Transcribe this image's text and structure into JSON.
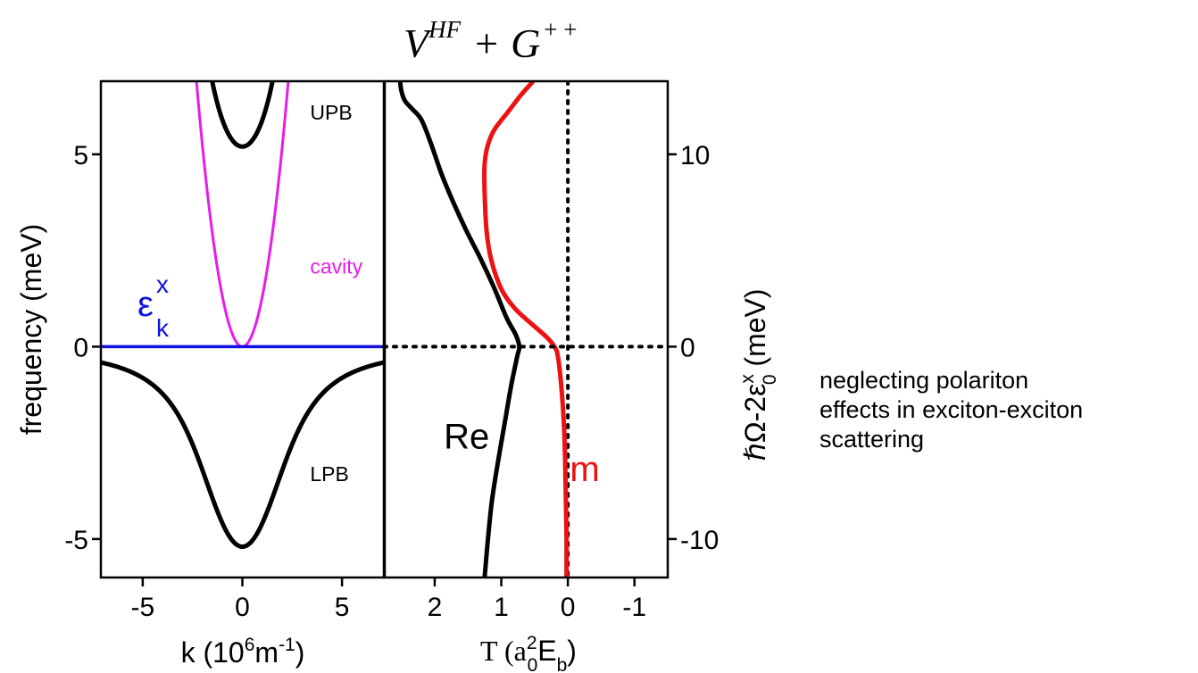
{
  "title": {
    "main": "V",
    "sup1": "HF",
    "plus1": "+",
    "main2": "G",
    "sup2": "+ +"
  },
  "colors": {
    "lpb_upb": "#000000",
    "cavity": "#e81ce8",
    "exciton": "#1010e0",
    "re": "#000000",
    "im": "#ee1111",
    "dotted": "#000000"
  },
  "note_lines": [
    "neglecting polariton",
    "effects in exciton-exciton",
    "scattering"
  ],
  "chart_data": [
    {
      "type": "line",
      "panel": "left",
      "xlabel": {
        "pre": "k  (10",
        "sup": "6",
        "mid": "m",
        "sup2": "-1",
        "post": ")"
      },
      "ylabel": "frequency (meV)",
      "xlim": [
        -7.1,
        7.1
      ],
      "ylim": [
        -6.0,
        6.9
      ],
      "xticks": [
        -5,
        0,
        5
      ],
      "xtick_labels": [
        "-5",
        "0",
        "5"
      ],
      "yticks": [
        -5,
        0,
        5
      ],
      "ytick_labels": [
        "-5",
        "0",
        "5"
      ],
      "curve_labels": [
        {
          "text": "UPB",
          "x": 3.4,
          "y": 5.9
        },
        {
          "text": "cavity",
          "x": 3.4,
          "y": 1.9
        },
        {
          "text": "LPB",
          "x": 3.4,
          "y": -3.5
        }
      ],
      "exciton_label": {
        "main": "ε",
        "sup": "x",
        "sub": "k"
      },
      "model": {
        "coupling_meV": 5.2,
        "cavity_curvature": 1.3
      },
      "series": [
        {
          "name": "UPB",
          "color": "#000000"
        },
        {
          "name": "cavity",
          "color": "#e81ce8"
        },
        {
          "name": "LPB",
          "color": "#000000"
        },
        {
          "name": "exciton",
          "color": "#1010e0"
        }
      ]
    },
    {
      "type": "line",
      "panel": "right",
      "xlabel": {
        "pre": "T  (a",
        "sup": "2",
        "sub": "0",
        "mid": "E",
        "sub2": "b",
        "post": ")"
      },
      "ylabel": {
        "pre": "ℏΩ-2ε",
        "sup": "x",
        "sub": "0",
        "post": " (meV)"
      },
      "xlim": [
        2.75,
        -1.5
      ],
      "ylim": [
        -12.0,
        13.8
      ],
      "xticks": [
        2,
        1,
        0,
        -1
      ],
      "xtick_labels": [
        "2",
        "1",
        "0",
        "-1"
      ],
      "yticks": [
        -10,
        0,
        10
      ],
      "ytick_labels": [
        "-10",
        "0",
        "10"
      ],
      "series": [
        {
          "name": "Re",
          "color": "#000000",
          "points": [
            [
              1.25,
              -12
            ],
            [
              1.2,
              -10
            ],
            [
              1.14,
              -8
            ],
            [
              1.05,
              -6
            ],
            [
              0.95,
              -4
            ],
            [
              0.85,
              -2
            ],
            [
              0.76,
              -0.5
            ],
            [
              0.73,
              0
            ],
            [
              0.78,
              0.6
            ],
            [
              0.92,
              1.5
            ],
            [
              1.1,
              3
            ],
            [
              1.3,
              4.5
            ],
            [
              1.52,
              6
            ],
            [
              1.72,
              7.5
            ],
            [
              1.9,
              9
            ],
            [
              2.05,
              10.5
            ],
            [
              2.2,
              11.8
            ],
            [
              2.35,
              12.4
            ],
            [
              2.45,
              12.8
            ],
            [
              2.5,
              13.3
            ],
            [
              2.52,
              13.8
            ]
          ]
        },
        {
          "name": "Im",
          "color": "#ee1111",
          "points": [
            [
              0.02,
              -12
            ],
            [
              0.02,
              -10
            ],
            [
              0.03,
              -8
            ],
            [
              0.04,
              -6
            ],
            [
              0.06,
              -4
            ],
            [
              0.1,
              -2
            ],
            [
              0.15,
              -0.5
            ],
            [
              0.2,
              0
            ],
            [
              0.32,
              0.5
            ],
            [
              0.55,
              1.2
            ],
            [
              0.8,
              2
            ],
            [
              1.0,
              3
            ],
            [
              1.15,
              4.5
            ],
            [
              1.22,
              6
            ],
            [
              1.25,
              8
            ],
            [
              1.25,
              9.5
            ],
            [
              1.2,
              10.5
            ],
            [
              1.1,
              11.3
            ],
            [
              0.9,
              12.2
            ],
            [
              0.7,
              13.1
            ],
            [
              0.52,
              13.8
            ]
          ]
        }
      ],
      "series_labels": [
        {
          "text": "Re",
          "x": 1.52,
          "y": -5.3
        },
        {
          "text": "Im",
          "x": -0.18,
          "y": -7.0
        }
      ]
    }
  ]
}
